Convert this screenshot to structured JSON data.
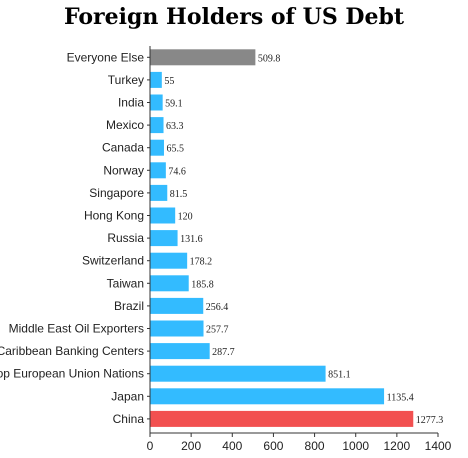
{
  "chart_data": {
    "type": "bar",
    "orientation": "horizontal",
    "title": "Foreign Holders of US Debt",
    "categories": [
      "Everyone Else",
      "Turkey",
      "India",
      "Mexico",
      "Canada",
      "Norway",
      "Singapore",
      "Hong Kong",
      "Russia",
      "Switzerland",
      "Taiwan",
      "Brazil",
      "Middle East Oil Exporters",
      "Caribbean Banking Centers",
      "Top European Union Nations",
      "Japan",
      "China"
    ],
    "values": [
      509.8,
      55,
      59.1,
      63.3,
      65.5,
      74.6,
      81.5,
      120,
      131.6,
      178.2,
      185.8,
      256.4,
      257.7,
      287.7,
      851.1,
      1135.4,
      1277.3
    ],
    "value_labels": [
      "509.8",
      "55",
      "59.1",
      "63.3",
      "65.5",
      "74.6",
      "81.5",
      "120",
      "131.6",
      "178.2",
      "185.8",
      "256.4",
      "257.7",
      "287.7",
      "851.1",
      "1135.4",
      "1277.3"
    ],
    "xlim": [
      0,
      1400
    ],
    "xticks": [
      "0",
      "200",
      "400",
      "600",
      "800",
      "1000",
      "1200",
      "1400"
    ],
    "grid": false,
    "colors": {
      "default": "#33BBFF",
      "Everyone Else": "#888888",
      "China": "#F25050"
    }
  }
}
